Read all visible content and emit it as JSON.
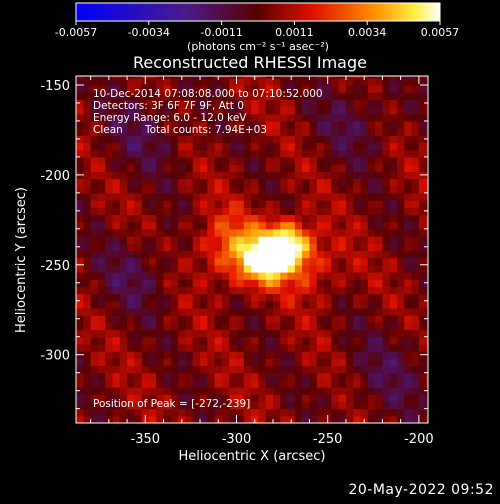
{
  "colorbar": {
    "ticks": [
      "-0.0057",
      "-0.0034",
      "-0.0011",
      "0.0011",
      "0.0034",
      "0.0057"
    ],
    "unit": "(photons cm⁻² s⁻¹ asec⁻²)"
  },
  "title": "Reconstructed RHESSI Image",
  "annotations": {
    "line1": "10-Dec-2014 07:08:08.000 to 07:10:52.000",
    "line2": "Detectors: 3F 6F 7F 9F, Att 0",
    "line3": "Energy Range: 6.0 - 12.0 keV",
    "line4_a": "Clean",
    "line4_b": "Total counts: 7.94E+03",
    "peak": "Position of Peak = [-272,-239]"
  },
  "footer": "20-May-2022 09:52",
  "chart_data": {
    "type": "heatmap",
    "title": "Reconstructed RHESSI Image",
    "xlabel": "Heliocentric X (arcsec)",
    "ylabel": "Heliocentric Y (arcsec)",
    "xlim": [
      -388,
      -195
    ],
    "ylim": [
      -338,
      -145
    ],
    "xticks": [
      -350,
      -300,
      -250,
      -200
    ],
    "yticks": [
      -300,
      -250,
      -200,
      -150
    ],
    "xtick_labels": [
      "-350",
      "-300",
      "-250",
      "-200"
    ],
    "ytick_labels": [
      "-300",
      "-250",
      "-200",
      "-150"
    ],
    "colorbar_range": [
      -0.0057,
      0.0057
    ],
    "colormap": "blue-purple-red-yellow-white",
    "peak": [
      -272,
      -239
    ],
    "peak_value": 0.0057,
    "sources": [
      {
        "x": -272,
        "y": -239,
        "amp": 0.0055,
        "sigma": 9
      },
      {
        "x": -285,
        "y": -247,
        "amp": 0.0045,
        "sigma": 9
      },
      {
        "x": -303,
        "y": -241,
        "amp": 0.0025,
        "sigma": 14
      },
      {
        "x": -258,
        "y": -252,
        "amp": 0.0015,
        "sigma": 12
      }
    ]
  }
}
